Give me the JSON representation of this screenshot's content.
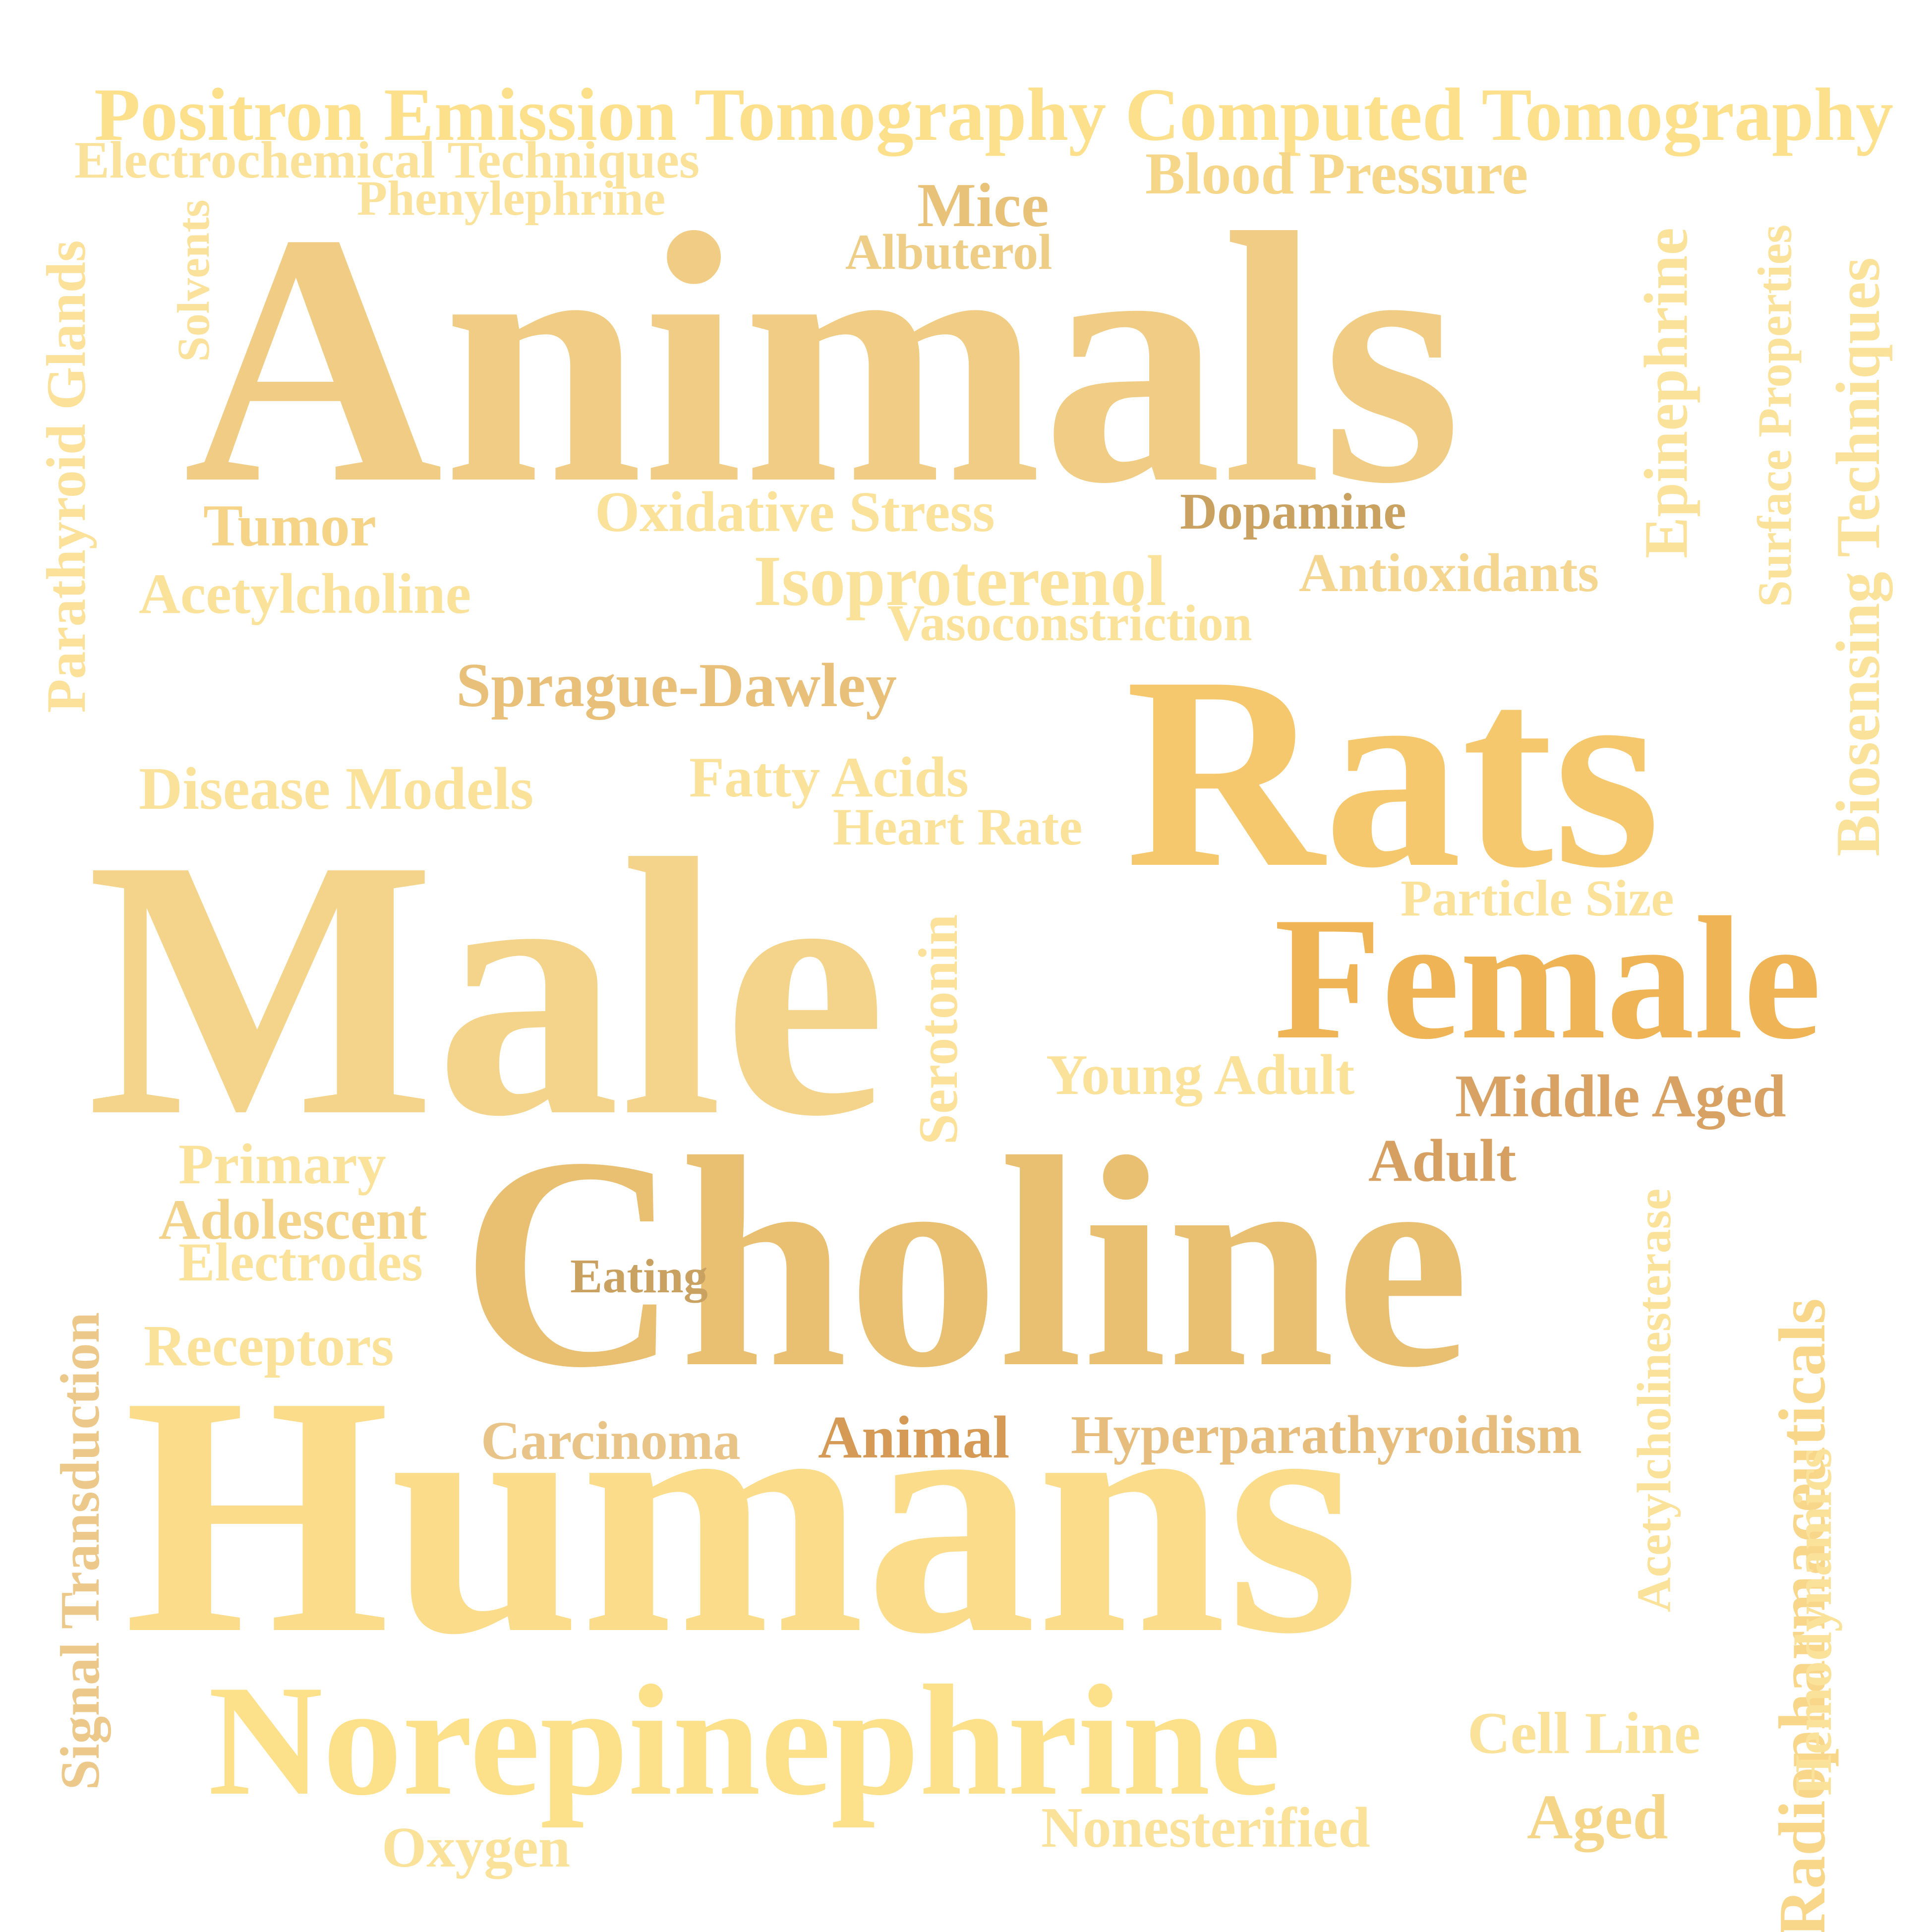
{
  "words": [
    {
      "text": "Positron Emission Tomography Computed Tomography",
      "color": "#fde08c"
    },
    {
      "text": "Electrochemical Techniques",
      "color": "#fbe29a"
    },
    {
      "text": "Blood Pressure",
      "color": "#f6d78a"
    },
    {
      "text": "Phenylephrine",
      "color": "#fbe29a"
    },
    {
      "text": "Mice",
      "color": "#e9c27a"
    },
    {
      "text": "Albuterol",
      "color": "#eecd86"
    },
    {
      "text": "Animals",
      "color": "#f0cc84"
    },
    {
      "text": "Parathyroid Glands",
      "color": "#fbe19a"
    },
    {
      "text": "Solvents",
      "color": "#fbe29c"
    },
    {
      "text": "Epinephrine",
      "color": "#fbe29a"
    },
    {
      "text": "Surface Properties",
      "color": "#fbe29a"
    },
    {
      "text": "Biosensing Techniques",
      "color": "#fbe29a"
    },
    {
      "text": "Tumor",
      "color": "#f5d488"
    },
    {
      "text": "Oxidative Stress",
      "color": "#fbe29a"
    },
    {
      "text": "Dopamine",
      "color": "#c9a262"
    },
    {
      "text": "Acetylcholine",
      "color": "#fbe29a"
    },
    {
      "text": "Isoproterenol",
      "color": "#fbe29a"
    },
    {
      "text": "Antioxidants",
      "color": "#f5d690"
    },
    {
      "text": "Vasoconstriction",
      "color": "#fbe29a"
    },
    {
      "text": "Sprague-Dawley",
      "color": "#e8c07a"
    },
    {
      "text": "Rats",
      "color": "#f6c86e"
    },
    {
      "text": "Disease Models",
      "color": "#fbe29a"
    },
    {
      "text": "Fatty Acids",
      "color": "#fbe29a"
    },
    {
      "text": "Heart Rate",
      "color": "#fbe29a"
    },
    {
      "text": "Particle Size",
      "color": "#fbe29a"
    },
    {
      "text": "Male",
      "color": "#f4d38a"
    },
    {
      "text": "Female",
      "color": "#eeb456"
    },
    {
      "text": "Serotonin",
      "color": "#fbe19a"
    },
    {
      "text": "Young Adult",
      "color": "#fbe29a"
    },
    {
      "text": "Middle Aged",
      "color": "#d7a264"
    },
    {
      "text": "Primary",
      "color": "#fbe29a"
    },
    {
      "text": "Adult",
      "color": "#d6a062"
    },
    {
      "text": "Adolescent",
      "color": "#f3d28a"
    },
    {
      "text": "Electrodes",
      "color": "#fbe29a"
    },
    {
      "text": "Choline",
      "color": "#e9bf72"
    },
    {
      "text": "Eating",
      "color": "#c9a262"
    },
    {
      "text": "Signal Transduction",
      "color": "#ecc98a"
    },
    {
      "text": "Receptors",
      "color": "#fbe29a"
    },
    {
      "text": "Acetylcholinesterase",
      "color": "#fbe29a"
    },
    {
      "text": "Carcinoma",
      "color": "#e8c488"
    },
    {
      "text": "Animal",
      "color": "#d49a56"
    },
    {
      "text": "Hyperparathyroidism",
      "color": "#e6bd7c"
    },
    {
      "text": "Humans",
      "color": "#fbdc8a"
    },
    {
      "text": "Radiopharmaceuticals",
      "color": "#f8d68a"
    },
    {
      "text": "Hemodynamics",
      "color": "#fbe29a"
    },
    {
      "text": "Norepinephrine",
      "color": "#fde08a"
    },
    {
      "text": "Cell Line",
      "color": "#fbe29a"
    },
    {
      "text": "Aged",
      "color": "#f5d688"
    },
    {
      "text": "Oxygen",
      "color": "#fbe29a"
    },
    {
      "text": "Nonesterified",
      "color": "#fbe29a"
    }
  ]
}
